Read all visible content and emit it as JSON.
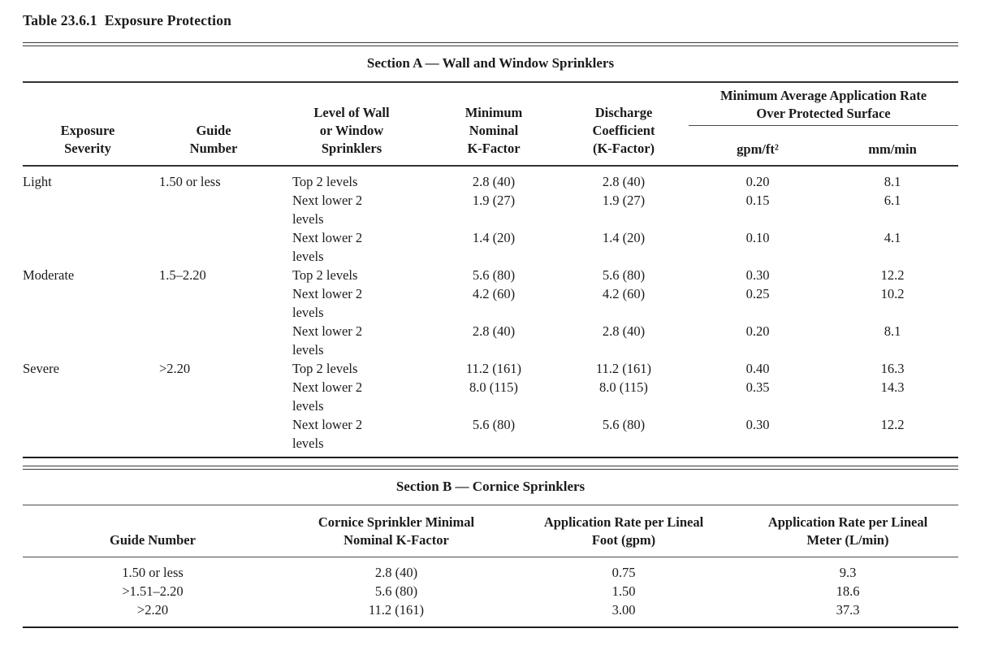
{
  "title": "Table 23.6.1  Exposure Protection",
  "section_a": {
    "heading": "Section A — Wall and Window Sprinklers",
    "headers": {
      "exposure_severity": "Exposure\nSeverity",
      "guide_number": "Guide\nNumber",
      "level": "Level of Wall\nor Window\nSprinklers",
      "min_k_factor": "Minimum\nNominal\nK-Factor",
      "discharge_coeff": "Discharge\nCoefficient\n(K-Factor)",
      "app_rate_spanner": "Minimum Average Application Rate\nOver Protected Surface",
      "gpm_ft2": "gpm/ft²",
      "mm_min": "mm/min"
    },
    "rows": [
      {
        "severity": "Light",
        "guide": "1.50 or less",
        "level": "Top 2 levels",
        "k_factor": "2.8 (40)",
        "discharge": "2.8 (40)",
        "gpm": "0.20",
        "mm": "8.1"
      },
      {
        "severity": "",
        "guide": "",
        "level": "Next lower 2\nlevels",
        "k_factor": "1.9 (27)",
        "discharge": "1.9 (27)",
        "gpm": "0.15",
        "mm": "6.1"
      },
      {
        "severity": "",
        "guide": "",
        "level": "Next lower 2\nlevels",
        "k_factor": "1.4 (20)",
        "discharge": "1.4 (20)",
        "gpm": "0.10",
        "mm": "4.1"
      },
      {
        "severity": "Moderate",
        "guide": "1.5–2.20",
        "level": "Top 2 levels",
        "k_factor": "5.6 (80)",
        "discharge": "5.6 (80)",
        "gpm": "0.30",
        "mm": "12.2"
      },
      {
        "severity": "",
        "guide": "",
        "level": "Next lower 2\nlevels",
        "k_factor": "4.2 (60)",
        "discharge": "4.2 (60)",
        "gpm": "0.25",
        "mm": "10.2"
      },
      {
        "severity": "",
        "guide": "",
        "level": "Next lower 2\nlevels",
        "k_factor": "2.8 (40)",
        "discharge": "2.8 (40)",
        "gpm": "0.20",
        "mm": "8.1"
      },
      {
        "severity": "Severe",
        "guide": ">2.20",
        "level": "Top 2 levels",
        "k_factor": "11.2 (161)",
        "discharge": "11.2 (161)",
        "gpm": "0.40",
        "mm": "16.3"
      },
      {
        "severity": "",
        "guide": "",
        "level": "Next lower 2\nlevels",
        "k_factor": "8.0 (115)",
        "discharge": "8.0 (115)",
        "gpm": "0.35",
        "mm": "14.3"
      },
      {
        "severity": "",
        "guide": "",
        "level": "Next lower 2\nlevels",
        "k_factor": "5.6 (80)",
        "discharge": "5.6 (80)",
        "gpm": "0.30",
        "mm": "12.2"
      }
    ]
  },
  "section_b": {
    "heading": "Section B — Cornice Sprinklers",
    "headers": {
      "guide_number": "Guide Number",
      "k_factor": "Cornice Sprinkler Minimal\nNominal K-Factor",
      "rate_foot": "Application Rate per Lineal\nFoot (gpm)",
      "rate_meter": "Application Rate per Lineal\nMeter (L/min)"
    },
    "rows": [
      {
        "guide": "1.50 or less",
        "k_factor": "2.8 (40)",
        "rate_foot": "0.75",
        "rate_meter": "9.3"
      },
      {
        "guide": ">1.51–2.20",
        "k_factor": "5.6 (80)",
        "rate_foot": "1.50",
        "rate_meter": "18.6"
      },
      {
        "guide": ">2.20",
        "k_factor": "11.2 (161)",
        "rate_foot": "3.00",
        "rate_meter": "37.3"
      }
    ]
  }
}
